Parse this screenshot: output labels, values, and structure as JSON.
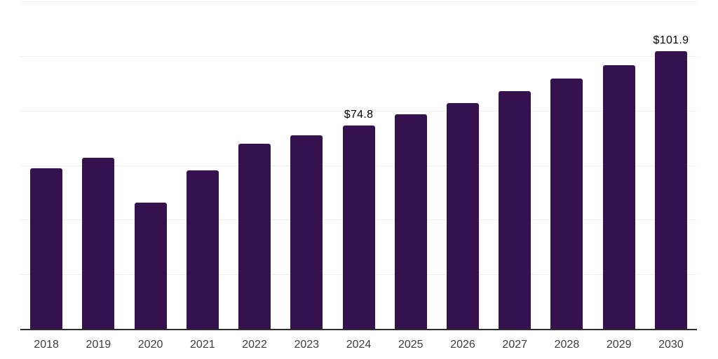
{
  "chart_data": {
    "type": "bar",
    "title": "",
    "xlabel": "",
    "ylabel": "",
    "categories": [
      "2018",
      "2019",
      "2020",
      "2021",
      "2022",
      "2023",
      "2024",
      "2025",
      "2026",
      "2027",
      "2028",
      "2029",
      "2030"
    ],
    "values": [
      59.0,
      63.0,
      46.5,
      58.3,
      68.0,
      71.3,
      74.8,
      79.0,
      83.0,
      87.3,
      92.0,
      97.0,
      101.9
    ],
    "point_labels": [
      "",
      "",
      "",
      "",
      "",
      "",
      "$74.8",
      "",
      "",
      "",
      "",
      "",
      "$101.9"
    ],
    "ylim": [
      0,
      120
    ],
    "gridline_step": 20,
    "grid": true,
    "legend": false,
    "currency_prefix": "$"
  },
  "colors": {
    "bar_fill": "#35114D",
    "axis_line": "#2d2d2d",
    "gridline": "#f0f0f3",
    "tick_label": "#3d3d3d",
    "value_label": "#000000",
    "background": "#ffffff"
  }
}
